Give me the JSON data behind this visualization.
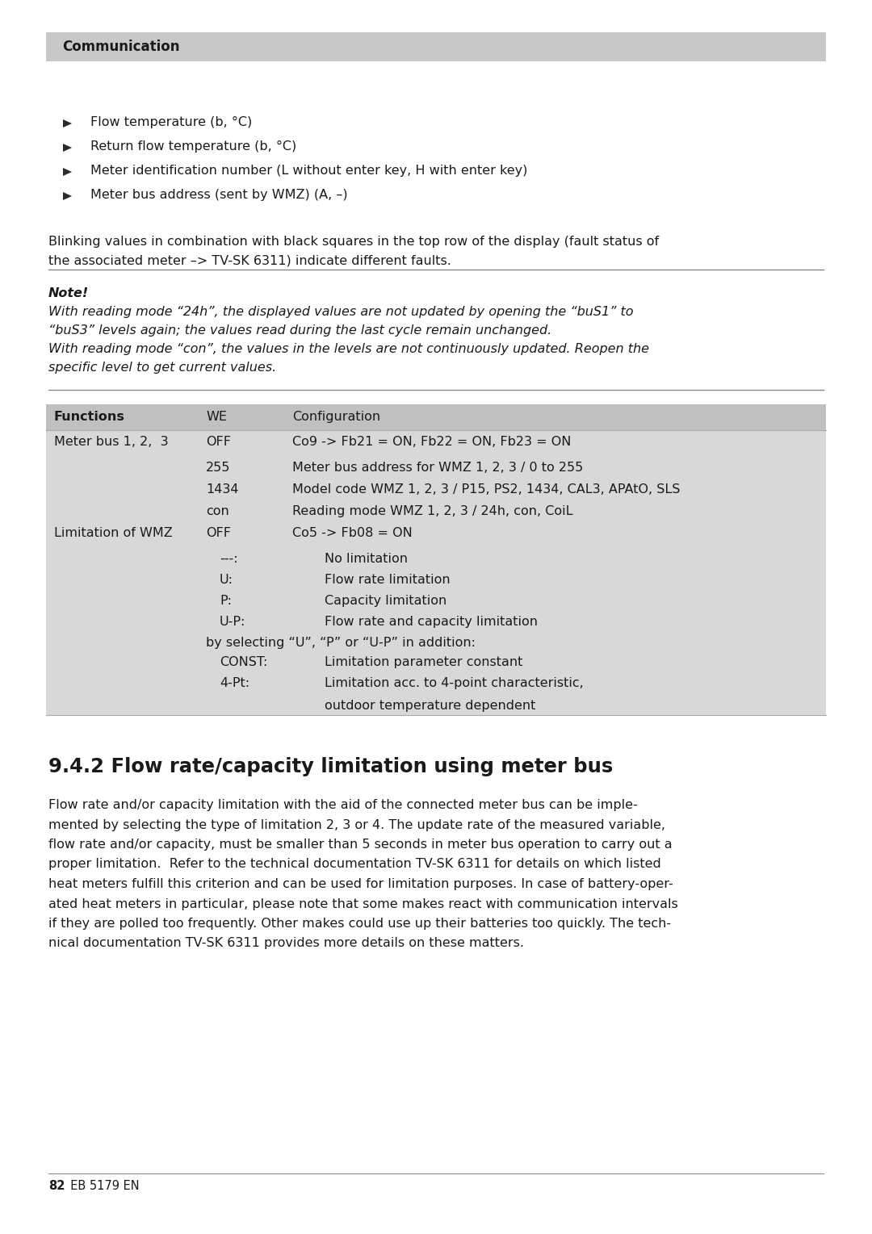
{
  "page_bg": "#ffffff",
  "header_bg": "#c8c8c8",
  "header_text": "Communication",
  "table_bg": "#d8d8d8",
  "bullet_items": [
    "Flow temperature (b, °C)",
    "Return flow temperature (b, °C)",
    "Meter identification number (L without enter key, H with enter key)",
    "Meter bus address (sent by WMZ) (A, –)"
  ],
  "blinking_line1": "Blinking values in combination with black squares in the top row of the display (fault status of",
  "blinking_line2": "the associated meter –> TV-SK 6311) indicate different faults.",
  "note_bold": "Note!",
  "note_italic_lines": [
    "With reading mode “24h”, the displayed values are not updated by opening the “buS1” to",
    "“buS3” levels again; the values read during the last cycle remain unchanged.",
    "With reading mode “con”, the values in the levels are not continuously updated. Reopen the",
    "specific level to get current values."
  ],
  "table_header": [
    "Functions",
    "WE",
    "Configuration"
  ],
  "table_rows": [
    {
      "c1": "Meter bus 1, 2,  3",
      "c2": "OFF",
      "c3": "Co9 -> Fb21 = ON, Fb22 = ON, Fb23 = ON",
      "sub": false
    },
    {
      "c1": "",
      "c2": "255",
      "c3": "Meter bus address for WMZ 1, 2, 3 / 0 to 255",
      "sub": false
    },
    {
      "c1": "",
      "c2": "1434",
      "c3": "Model code WMZ 1, 2, 3 / P15, PS2, 1434, CAL3, APAtO, SLS",
      "sub": false
    },
    {
      "c1": "",
      "c2": "con",
      "c3": "Reading mode WMZ 1, 2, 3 / 24h, con, CoiL",
      "sub": false
    },
    {
      "c1": "Limitation of WMZ",
      "c2": "OFF",
      "c3": "Co5 -> Fb08 = ON",
      "sub": false
    },
    {
      "c1": "",
      "c2": "---:",
      "c3": "No limitation",
      "sub": true
    },
    {
      "c1": "",
      "c2": "U:",
      "c3": "Flow rate limitation",
      "sub": true
    },
    {
      "c1": "",
      "c2": "P:",
      "c3": "Capacity limitation",
      "sub": true
    },
    {
      "c1": "",
      "c2": "U-P:",
      "c3": "Flow rate and capacity limitation",
      "sub": true
    },
    {
      "c1": "",
      "c2": "by selecting “U”, “P” or “U-P” in addition:",
      "c3": "",
      "sub": false,
      "span": true
    },
    {
      "c1": "",
      "c2": "CONST:",
      "c3": "Limitation parameter constant",
      "sub": true
    },
    {
      "c1": "",
      "c2": "4-Pt:",
      "c3": "Limitation acc. to 4-point characteristic,",
      "sub": true
    },
    {
      "c1": "",
      "c2": "",
      "c3": "outdoor temperature dependent",
      "sub": true,
      "c3only": true
    }
  ],
  "section_title": "9.4.2 Flow rate/capacity limitation using meter bus",
  "body_lines": [
    "Flow rate and/or capacity limitation with the aid of the connected meter bus can be imple-",
    "mented by selecting the type of limitation 2, 3 or 4. The update rate of the measured variable,",
    "flow rate and/or capacity, must be smaller than 5 seconds in meter bus operation to carry out a",
    "proper limitation.  Refer to the technical documentation TV-SK 6311 for details on which listed",
    "heat meters fulfill this criterion and can be used for limitation purposes. In case of battery-oper-",
    "ated heat meters in particular, please note that some makes react with communication intervals",
    "if they are polled too frequently. Other makes could use up their batteries too quickly. The tech-",
    "nical documentation TV-SK 6311 provides more details on these matters."
  ],
  "footer_bold": "82",
  "footer_normal": "  EB 5179 EN"
}
